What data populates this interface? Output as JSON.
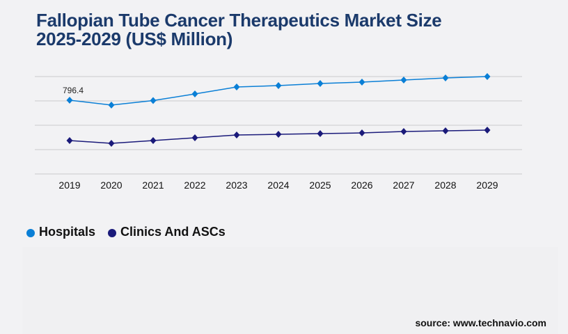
{
  "chart_data": {
    "type": "line",
    "title_lines": [
      "Fallopian Tube Cancer Therapeutics Market Size",
      "2025-2029 (US$ Million)"
    ],
    "x": [
      "2019",
      "2020",
      "2021",
      "2022",
      "2023",
      "2024",
      "2025",
      "2026",
      "2027",
      "2028",
      "2029"
    ],
    "series": [
      {
        "name": "Hospitals",
        "color": "#0a7fd6",
        "values": [
          796.4,
          744,
          793,
          864,
          939,
          954,
          977,
          992,
          1014,
          1037,
          1052
        ]
      },
      {
        "name": "Clinics And ASCs",
        "color": "#1a1a7a",
        "values": [
          361,
          331,
          361,
          391,
          421,
          428,
          436,
          443,
          458,
          466,
          473
        ]
      }
    ],
    "annotations": [
      {
        "series": "Hospitals",
        "x": "2019",
        "text": "796.4"
      }
    ],
    "ylim": [
      0,
      1052
    ],
    "yticks_labeled": false,
    "grid": true,
    "legend_position": "bottom-left",
    "xlabel": "",
    "ylabel": ""
  },
  "source": "source: www.technavio.com"
}
